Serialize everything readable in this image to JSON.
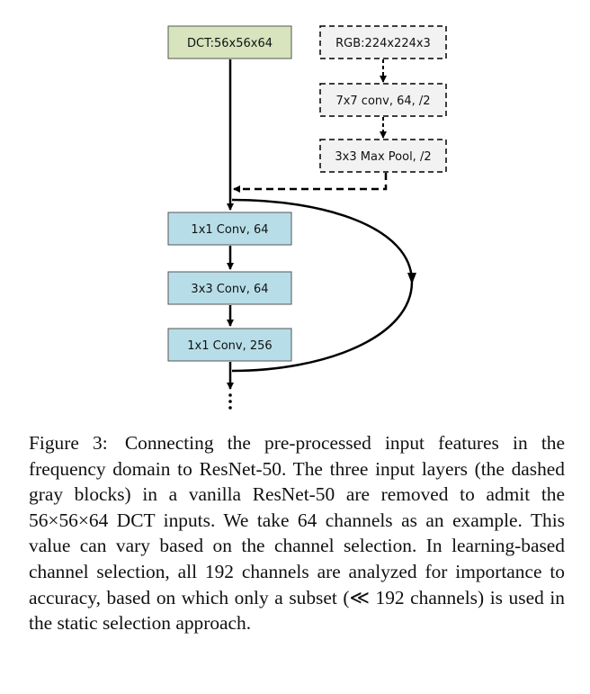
{
  "figure": {
    "blocks": {
      "dct_input": "DCT:56x56x64",
      "rgb_input": "RGB:224x224x3",
      "conv7x7": "7x7 conv, 64, /2",
      "maxpool": "3x3 Max Pool, /2",
      "conv1x1_a": "1x1 Conv, 64",
      "conv3x3": "3x3 Conv, 64",
      "conv1x1_b": "1x1 Conv, 256"
    },
    "colors": {
      "dct_fill": "#d7e4bd",
      "conv_fill": "#b7dee8",
      "removed_fill": "#f2f2f2",
      "stroke": "#000000"
    }
  },
  "caption": {
    "label": "Figure 3:",
    "text": "Connecting the pre-processed input features in the frequency domain to ResNet-50. The three input layers (the dashed gray blocks) in a vanilla ResNet-50 are removed to admit the 56×56×64 DCT inputs. We take 64 channels as an example. This value can vary based on the channel selection. In learning-based channel selection, all 192 channels are analyzed for importance to accuracy, based on which only a subset (≪ 192 channels) is used in the static selection approach."
  }
}
